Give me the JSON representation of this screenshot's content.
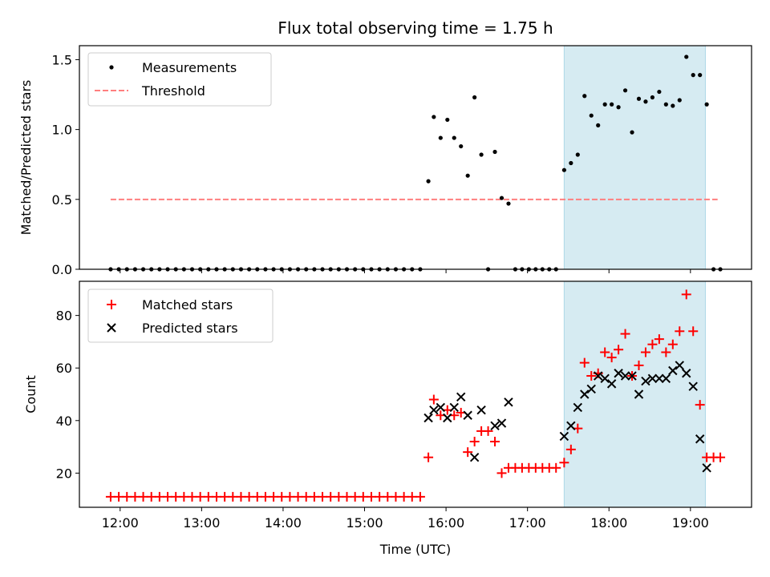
{
  "chart_data": [
    {
      "type": "scatter",
      "title": "Flux total observing time = 1.75 h",
      "xlabel": "",
      "ylabel": "Matched/Predicted stars",
      "ylim": [
        0,
        1.6
      ],
      "yticks": [
        0.0,
        0.5,
        1.0,
        1.5
      ],
      "ytick_labels": [
        "0.0",
        "0.5",
        "1.0",
        "1.5"
      ],
      "xlim": [
        "11:30",
        "19:45"
      ],
      "highlight_span": {
        "start": "17:27",
        "end": "19:11",
        "color": "#add8e6"
      },
      "legend_position": "upper-left",
      "threshold": {
        "name": "Threshold",
        "value": 0.5,
        "start": "11:53",
        "end": "19:20",
        "color": "#ff7f7f",
        "style": "dashed"
      },
      "series": [
        {
          "name": "Measurements",
          "color": "#000000",
          "marker": "dot",
          "points": [
            [
              "11:53",
              0
            ],
            [
              "11:59",
              0
            ],
            [
              "12:05",
              0
            ],
            [
              "12:11",
              0
            ],
            [
              "12:17",
              0
            ],
            [
              "12:23",
              0
            ],
            [
              "12:29",
              0
            ],
            [
              "12:35",
              0
            ],
            [
              "12:41",
              0
            ],
            [
              "12:47",
              0
            ],
            [
              "12:53",
              0
            ],
            [
              "12:59",
              0
            ],
            [
              "13:05",
              0
            ],
            [
              "13:11",
              0
            ],
            [
              "13:17",
              0
            ],
            [
              "13:23",
              0
            ],
            [
              "13:29",
              0
            ],
            [
              "13:35",
              0
            ],
            [
              "13:41",
              0
            ],
            [
              "13:47",
              0
            ],
            [
              "13:53",
              0
            ],
            [
              "13:59",
              0
            ],
            [
              "14:05",
              0
            ],
            [
              "14:11",
              0
            ],
            [
              "14:17",
              0
            ],
            [
              "14:23",
              0
            ],
            [
              "14:29",
              0
            ],
            [
              "14:35",
              0
            ],
            [
              "14:41",
              0
            ],
            [
              "14:47",
              0
            ],
            [
              "14:53",
              0
            ],
            [
              "14:59",
              0
            ],
            [
              "15:05",
              0
            ],
            [
              "15:11",
              0
            ],
            [
              "15:17",
              0
            ],
            [
              "15:23",
              0
            ],
            [
              "15:29",
              0
            ],
            [
              "15:35",
              0
            ],
            [
              "15:41",
              0
            ],
            [
              "15:47",
              0.63
            ],
            [
              "15:51",
              1.09
            ],
            [
              "15:56",
              0.94
            ],
            [
              "16:01",
              1.07
            ],
            [
              "16:06",
              0.94
            ],
            [
              "16:11",
              0.88
            ],
            [
              "16:16",
              0.67
            ],
            [
              "16:21",
              1.23
            ],
            [
              "16:26",
              0.82
            ],
            [
              "16:31",
              0.0
            ],
            [
              "16:36",
              0.84
            ],
            [
              "16:41",
              0.51
            ],
            [
              "16:46",
              0.47
            ],
            [
              "16:51",
              0
            ],
            [
              "16:56",
              0
            ],
            [
              "17:01",
              0
            ],
            [
              "17:06",
              0
            ],
            [
              "17:11",
              0
            ],
            [
              "17:16",
              0
            ],
            [
              "17:21",
              0
            ],
            [
              "17:27",
              0.71
            ],
            [
              "17:32",
              0.76
            ],
            [
              "17:37",
              0.82
            ],
            [
              "17:42",
              1.24
            ],
            [
              "17:47",
              1.1
            ],
            [
              "17:52",
              1.03
            ],
            [
              "17:57",
              1.18
            ],
            [
              "18:02",
              1.18
            ],
            [
              "18:07",
              1.16
            ],
            [
              "18:12",
              1.28
            ],
            [
              "18:17",
              0.98
            ],
            [
              "18:22",
              1.22
            ],
            [
              "18:27",
              1.2
            ],
            [
              "18:32",
              1.23
            ],
            [
              "18:37",
              1.27
            ],
            [
              "18:42",
              1.18
            ],
            [
              "18:47",
              1.17
            ],
            [
              "18:52",
              1.21
            ],
            [
              "18:57",
              1.52
            ],
            [
              "19:02",
              1.39
            ],
            [
              "19:07",
              1.39
            ],
            [
              "19:12",
              1.18
            ],
            [
              "19:17",
              0
            ],
            [
              "19:22",
              0
            ]
          ]
        }
      ]
    },
    {
      "type": "scatter",
      "xlabel": "Time (UTC)",
      "ylabel": "Count",
      "ylim": [
        7,
        93
      ],
      "yticks": [
        20,
        40,
        60,
        80
      ],
      "ytick_labels": [
        "20",
        "40",
        "60",
        "80"
      ],
      "xlim": [
        "11:30",
        "19:45"
      ],
      "xticks": [
        "12:00",
        "13:00",
        "14:00",
        "15:00",
        "16:00",
        "17:00",
        "18:00",
        "19:00"
      ],
      "highlight_span": {
        "start": "17:27",
        "end": "19:11",
        "color": "#add8e6"
      },
      "legend_position": "upper-left",
      "series": [
        {
          "name": "Matched stars",
          "color": "#ff0000",
          "marker": "plus",
          "points": [
            [
              "11:53",
              11
            ],
            [
              "11:59",
              11
            ],
            [
              "12:05",
              11
            ],
            [
              "12:11",
              11
            ],
            [
              "12:17",
              11
            ],
            [
              "12:23",
              11
            ],
            [
              "12:29",
              11
            ],
            [
              "12:35",
              11
            ],
            [
              "12:41",
              11
            ],
            [
              "12:47",
              11
            ],
            [
              "12:53",
              11
            ],
            [
              "12:59",
              11
            ],
            [
              "13:05",
              11
            ],
            [
              "13:11",
              11
            ],
            [
              "13:17",
              11
            ],
            [
              "13:23",
              11
            ],
            [
              "13:29",
              11
            ],
            [
              "13:35",
              11
            ],
            [
              "13:41",
              11
            ],
            [
              "13:47",
              11
            ],
            [
              "13:53",
              11
            ],
            [
              "13:59",
              11
            ],
            [
              "14:05",
              11
            ],
            [
              "14:11",
              11
            ],
            [
              "14:17",
              11
            ],
            [
              "14:23",
              11
            ],
            [
              "14:29",
              11
            ],
            [
              "14:35",
              11
            ],
            [
              "14:41",
              11
            ],
            [
              "14:47",
              11
            ],
            [
              "14:53",
              11
            ],
            [
              "14:59",
              11
            ],
            [
              "15:05",
              11
            ],
            [
              "15:11",
              11
            ],
            [
              "15:17",
              11
            ],
            [
              "15:23",
              11
            ],
            [
              "15:29",
              11
            ],
            [
              "15:35",
              11
            ],
            [
              "15:41",
              11
            ],
            [
              "15:47",
              26
            ],
            [
              "15:51",
              48
            ],
            [
              "15:56",
              42
            ],
            [
              "16:01",
              44
            ],
            [
              "16:06",
              42
            ],
            [
              "16:11",
              43
            ],
            [
              "16:16",
              28
            ],
            [
              "16:21",
              32
            ],
            [
              "16:26",
              36
            ],
            [
              "16:31",
              36
            ],
            [
              "16:36",
              32
            ],
            [
              "16:41",
              20
            ],
            [
              "16:46",
              22
            ],
            [
              "16:51",
              22
            ],
            [
              "16:56",
              22
            ],
            [
              "17:01",
              22
            ],
            [
              "17:06",
              22
            ],
            [
              "17:11",
              22
            ],
            [
              "17:16",
              22
            ],
            [
              "17:21",
              22
            ],
            [
              "17:27",
              24
            ],
            [
              "17:32",
              29
            ],
            [
              "17:37",
              37
            ],
            [
              "17:42",
              62
            ],
            [
              "17:47",
              57
            ],
            [
              "17:52",
              58
            ],
            [
              "17:57",
              66
            ],
            [
              "18:02",
              64
            ],
            [
              "18:07",
              67
            ],
            [
              "18:12",
              73
            ],
            [
              "18:17",
              57
            ],
            [
              "18:22",
              61
            ],
            [
              "18:27",
              66
            ],
            [
              "18:32",
              69
            ],
            [
              "18:37",
              71
            ],
            [
              "18:42",
              66
            ],
            [
              "18:47",
              69
            ],
            [
              "18:52",
              74
            ],
            [
              "18:57",
              88
            ],
            [
              "19:02",
              74
            ],
            [
              "19:07",
              46
            ],
            [
              "19:12",
              26
            ],
            [
              "19:17",
              26
            ],
            [
              "19:22",
              26
            ]
          ]
        },
        {
          "name": "Predicted stars",
          "color": "#000000",
          "marker": "x",
          "points": [
            [
              "15:47",
              41
            ],
            [
              "15:51",
              44
            ],
            [
              "15:56",
              45
            ],
            [
              "16:01",
              41
            ],
            [
              "16:06",
              45
            ],
            [
              "16:11",
              49
            ],
            [
              "16:16",
              42
            ],
            [
              "16:21",
              26
            ],
            [
              "16:26",
              44
            ],
            [
              "16:36",
              38
            ],
            [
              "16:41",
              39
            ],
            [
              "16:46",
              47
            ],
            [
              "17:27",
              34
            ],
            [
              "17:32",
              38
            ],
            [
              "17:37",
              45
            ],
            [
              "17:42",
              50
            ],
            [
              "17:47",
              52
            ],
            [
              "17:52",
              57
            ],
            [
              "17:57",
              56
            ],
            [
              "18:02",
              54
            ],
            [
              "18:07",
              58
            ],
            [
              "18:12",
              57
            ],
            [
              "18:17",
              57
            ],
            [
              "18:22",
              50
            ],
            [
              "18:27",
              55
            ],
            [
              "18:32",
              56
            ],
            [
              "18:37",
              56
            ],
            [
              "18:42",
              56
            ],
            [
              "18:47",
              59
            ],
            [
              "18:52",
              61
            ],
            [
              "18:57",
              58
            ],
            [
              "19:02",
              53
            ],
            [
              "19:07",
              33
            ],
            [
              "19:12",
              22
            ]
          ]
        }
      ]
    }
  ]
}
